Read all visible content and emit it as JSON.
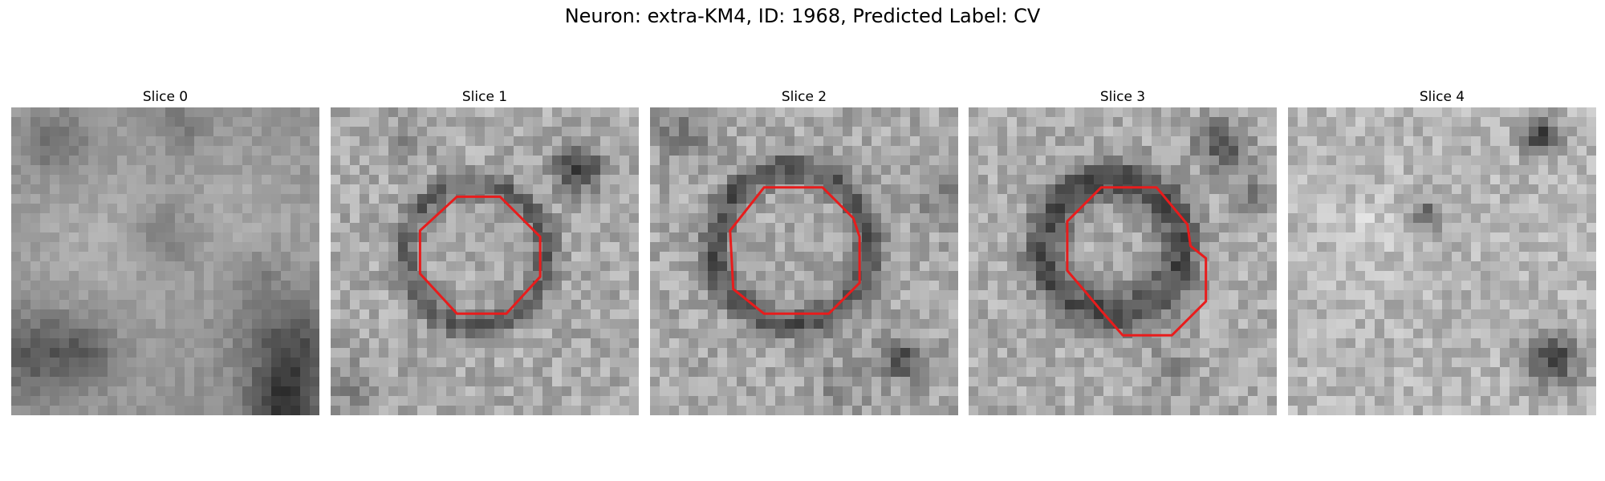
{
  "figure": {
    "title": "Neuron: extra-KM4, ID: 1968, Predicted Label: CV"
  },
  "contour_color": "#e81c1c",
  "panels": [
    {
      "title": "Slice 0",
      "has_contour": false
    },
    {
      "title": "Slice 1",
      "has_contour": true
    },
    {
      "title": "Slice 2",
      "has_contour": true
    },
    {
      "title": "Slice 3",
      "has_contour": true
    },
    {
      "title": "Slice 4",
      "has_contour": false
    }
  ]
}
